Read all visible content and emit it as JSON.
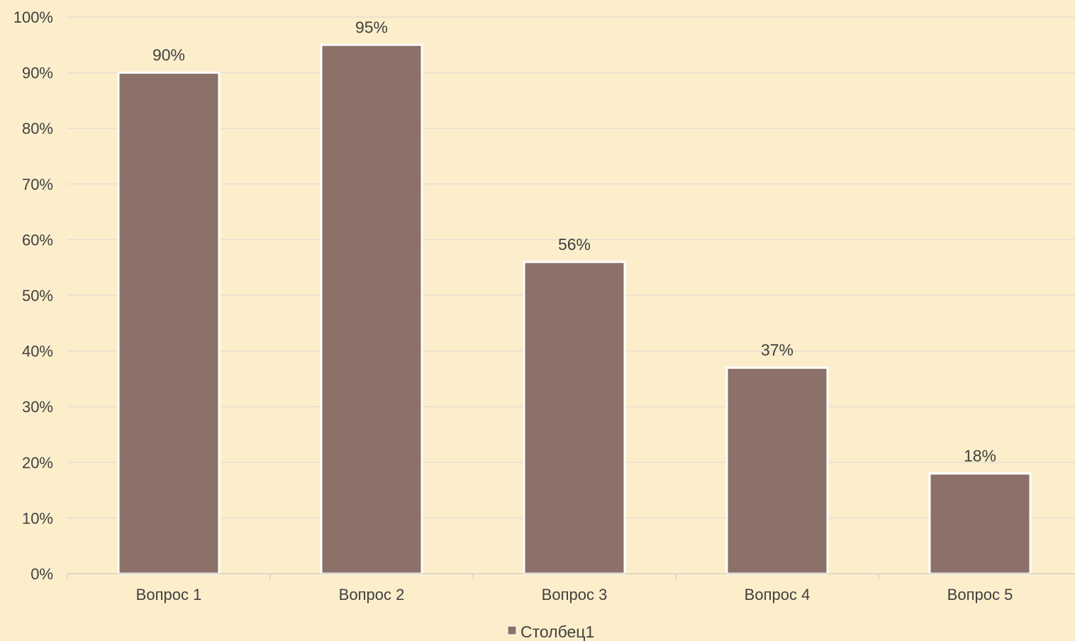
{
  "chart_data": {
    "type": "bar",
    "categories": [
      "Вопрос 1",
      "Вопрос 2",
      "Вопрос 3",
      "Вопрос 4",
      "Вопрос 5"
    ],
    "series": [
      {
        "name": "Столбец1",
        "values": [
          90,
          95,
          56,
          37,
          18
        ],
        "data_labels": [
          "90%",
          "95%",
          "56%",
          "37%",
          "18%"
        ]
      }
    ],
    "y_ticks": [
      "0%",
      "10%",
      "20%",
      "30%",
      "40%",
      "50%",
      "60%",
      "70%",
      "80%",
      "90%",
      "100%"
    ],
    "ylim": [
      0,
      100
    ],
    "grid": true,
    "legend": "bottom",
    "colors": {
      "background": "#FCEECB",
      "bar": "#8C7168",
      "bar_border": "#FFFFFF",
      "gridline": "#E6DFD0",
      "text": "#404040"
    }
  }
}
